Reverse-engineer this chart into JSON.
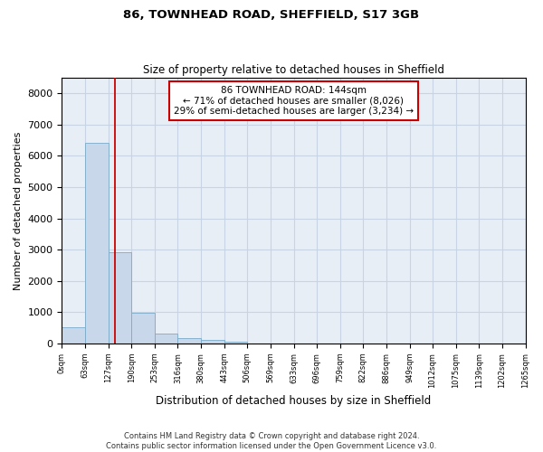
{
  "title1": "86, TOWNHEAD ROAD, SHEFFIELD, S17 3GB",
  "title2": "Size of property relative to detached houses in Sheffield",
  "xlabel": "Distribution of detached houses by size in Sheffield",
  "ylabel": "Number of detached properties",
  "annotation_line0": "86 TOWNHEAD ROAD: 144sqm",
  "annotation_line1": "← 71% of detached houses are smaller (8,026)",
  "annotation_line2": "29% of semi-detached houses are larger (3,234) →",
  "footer1": "Contains HM Land Registry data © Crown copyright and database right 2024.",
  "footer2": "Contains public sector information licensed under the Open Government Licence v3.0.",
  "bar_color": "#c8d8ea",
  "bar_edge_color": "#7aaac8",
  "grid_color": "#c8d4e4",
  "background_color": "#e8eef6",
  "vline_color": "#cc0000",
  "vline_x": 144,
  "bin_edges": [
    0,
    63,
    127,
    190,
    253,
    316,
    380,
    443,
    506,
    569,
    633,
    696,
    759,
    822,
    886,
    949,
    1012,
    1075,
    1139,
    1202,
    1265
  ],
  "bar_heights": [
    530,
    6430,
    2920,
    970,
    330,
    160,
    100,
    60,
    0,
    0,
    0,
    0,
    0,
    0,
    0,
    0,
    0,
    0,
    0,
    0
  ],
  "ylim": [
    0,
    8500
  ],
  "yticks": [
    0,
    1000,
    2000,
    3000,
    4000,
    5000,
    6000,
    7000,
    8000
  ]
}
